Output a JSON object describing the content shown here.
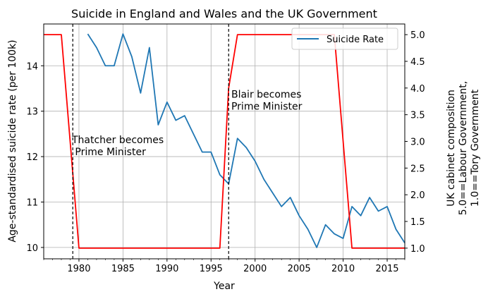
{
  "chart_data": {
    "type": "line",
    "title": "Suicide in England and Wales and the UK Government",
    "xlabel": "Year",
    "ylabel_left": "Age-standardised suicide rate (per 100k)",
    "ylabel_right_lines": [
      "UK cabinet composition",
      "5.0==Labour Government,",
      "1.0==Tory Government"
    ],
    "xlim": [
      1976,
      2017
    ],
    "ylim_left": [
      9.75,
      14.92
    ],
    "ylim_right": [
      0.8,
      5.2
    ],
    "x_ticks": [
      1980,
      1985,
      1990,
      1995,
      2000,
      2005,
      2010,
      2015
    ],
    "y_ticks_left": [
      10,
      11,
      12,
      13,
      14
    ],
    "y_ticks_right": [
      1.0,
      1.5,
      2.0,
      2.5,
      3.0,
      3.5,
      4.0,
      4.5,
      5.0
    ],
    "y_tick_labels_right": [
      "1.0",
      "1.5",
      "2.0",
      "2.5",
      "3.0",
      "3.5",
      "4.0",
      "4.5",
      "5.0"
    ],
    "grid": true,
    "legend_position": "upper right",
    "series": [
      {
        "name": "Suicide Rate",
        "axis": "left",
        "color": "#1f77b4",
        "x": [
          1981,
          1982,
          1983,
          1984,
          1985,
          1986,
          1987,
          1988,
          1989,
          1990,
          1991,
          1992,
          1993,
          1994,
          1995,
          1996,
          1997,
          1998,
          1999,
          2000,
          2001,
          2002,
          2003,
          2004,
          2005,
          2006,
          2007,
          2008,
          2009,
          2010,
          2011,
          2012,
          2013,
          2014,
          2015,
          2016,
          2017
        ],
        "y": [
          14.7,
          14.4,
          14.0,
          14.0,
          14.7,
          14.2,
          13.4,
          14.4,
          12.7,
          13.2,
          12.8,
          12.9,
          12.5,
          12.1,
          12.1,
          11.6,
          11.4,
          12.4,
          12.2,
          11.9,
          11.5,
          11.2,
          10.9,
          11.1,
          10.7,
          10.4,
          10.0,
          10.5,
          10.3,
          10.2,
          10.9,
          10.7,
          11.1,
          10.8,
          10.9,
          10.4,
          10.1
        ]
      },
      {
        "axis": "right",
        "color": "#ff0000",
        "x": [
          1976,
          1978,
          1980,
          1996,
          1997,
          1998,
          2009,
          2011,
          2017
        ],
        "y": [
          5.0,
          5.0,
          1.0,
          1.0,
          4.0,
          5.0,
          5.0,
          1.0,
          1.0
        ]
      }
    ],
    "vlines": [
      {
        "x": 1979.3,
        "style": "dashed",
        "color": "#000000"
      },
      {
        "x": 1997.0,
        "style": "dashed",
        "color": "#000000"
      }
    ],
    "annotations": [
      {
        "lines": [
          "Thatcher becomes",
          " Prime Minister"
        ],
        "x": 1979.2,
        "y": 12.3
      },
      {
        "lines": [
          "Blair becomes",
          "Prime Minister"
        ],
        "x": 1997.3,
        "y": 13.3
      }
    ]
  }
}
